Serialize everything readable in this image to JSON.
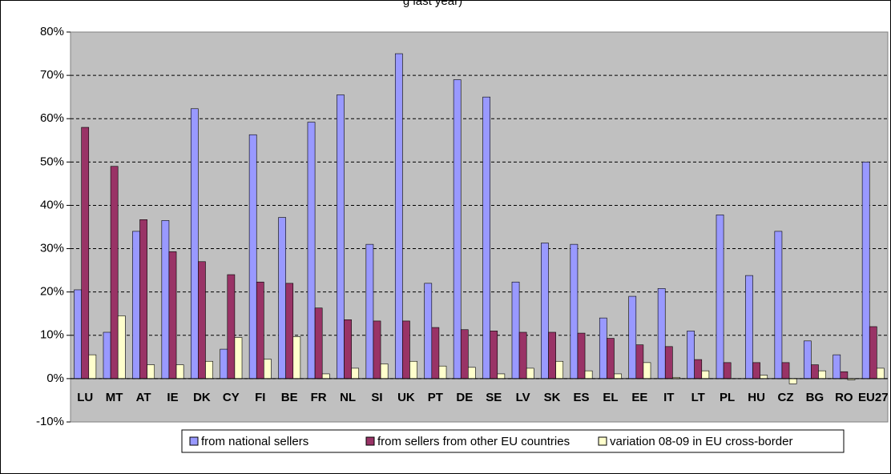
{
  "chart_data": {
    "type": "bar",
    "title": "g last year)",
    "categories": [
      "LU",
      "MT",
      "AT",
      "IE",
      "DK",
      "CY",
      "FI",
      "BE",
      "FR",
      "NL",
      "SI",
      "UK",
      "PT",
      "DE",
      "SE",
      "LV",
      "SK",
      "ES",
      "EL",
      "EE",
      "IT",
      "LT",
      "PL",
      "HU",
      "CZ",
      "BG",
      "RO",
      "EU27"
    ],
    "series": [
      {
        "name": "from national sellers",
        "color": "#9999ff",
        "values": [
          20.5,
          10.7,
          34,
          36.5,
          62.3,
          6.8,
          56.3,
          37.2,
          59.2,
          65.5,
          31,
          75,
          22,
          69,
          65,
          22.3,
          31.3,
          31,
          14,
          19,
          20.8,
          11,
          37.8,
          23.8,
          34,
          8.7,
          5.5,
          50
        ]
      },
      {
        "name": "from sellers from other EU countries",
        "color": "#993366",
        "values": [
          58,
          49,
          36.7,
          29.3,
          27,
          24,
          22.3,
          22,
          16.3,
          13.6,
          13.3,
          13.3,
          11.8,
          11.3,
          11,
          10.7,
          10.7,
          10.5,
          9.3,
          7.8,
          7.4,
          4.4,
          3.7,
          3.7,
          3.7,
          3.2,
          1.6,
          12
        ]
      },
      {
        "name": "variation 08-09 in EU cross-border",
        "color": "#ffffcc",
        "values": [
          5.5,
          14.5,
          3.2,
          3.2,
          4,
          9.5,
          4.5,
          9.7,
          1.1,
          2.4,
          3.4,
          4,
          2.9,
          2.6,
          1.1,
          2.4,
          4,
          1.8,
          1.1,
          3.7,
          0.3,
          1.8,
          0,
          0.8,
          -1.2,
          1.8,
          -0.3,
          2.4
        ]
      }
    ],
    "ylim": [
      -10,
      80
    ],
    "yticks": [
      {
        "value": -10,
        "label": "-10%"
      },
      {
        "value": 0,
        "label": "0%"
      },
      {
        "value": 10,
        "label": "10%"
      },
      {
        "value": 20,
        "label": "20%"
      },
      {
        "value": 30,
        "label": "30%"
      },
      {
        "value": 40,
        "label": "40%"
      },
      {
        "value": 50,
        "label": "50%"
      },
      {
        "value": 60,
        "label": "60%"
      },
      {
        "value": 70,
        "label": "70%"
      },
      {
        "value": 80,
        "label": "80%"
      }
    ],
    "grid": true
  }
}
